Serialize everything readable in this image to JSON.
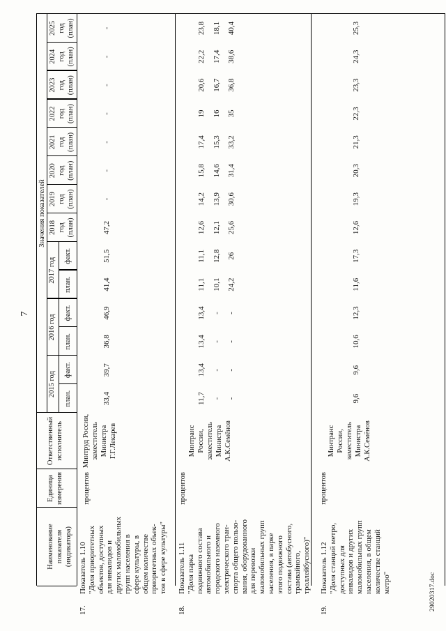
{
  "page": {
    "number": "7",
    "footer_filename": "29020317.doc"
  },
  "table": {
    "headers": {
      "name_lines": [
        "Наименование показателя",
        "(индикатора)"
      ],
      "unit_lines": [
        "Единица",
        "измерения"
      ],
      "responsible_lines": [
        "Ответственный",
        "исполнитель"
      ],
      "values_group": "Значения показателей",
      "year_columns": [
        {
          "type": "group",
          "label": "2015 год",
          "subs": [
            "план.",
            "факт."
          ]
        },
        {
          "type": "group",
          "label": "2016 год",
          "subs": [
            "план.",
            "факт."
          ]
        },
        {
          "type": "group",
          "label": "2017 год",
          "subs": [
            "план.",
            "факт."
          ]
        },
        {
          "type": "single",
          "lines": [
            "2018",
            "год",
            "(план)"
          ]
        },
        {
          "type": "single",
          "lines": [
            "2019",
            "год",
            "(план)"
          ]
        },
        {
          "type": "single",
          "lines": [
            "2020",
            "год",
            "(план)"
          ]
        },
        {
          "type": "single",
          "lines": [
            "2021",
            "год",
            "(план)"
          ]
        },
        {
          "type": "single",
          "lines": [
            "2022",
            "год",
            "(план)"
          ]
        },
        {
          "type": "single",
          "lines": [
            "2023",
            "год",
            "(план)"
          ]
        },
        {
          "type": "single",
          "lines": [
            "2024",
            "год",
            "(план)"
          ]
        },
        {
          "type": "single",
          "lines": [
            "2025",
            "год",
            "(план)"
          ]
        }
      ]
    },
    "rows": [
      {
        "num": "17.",
        "indicator_lines": [
          "Показатель 1.10",
          "\"Доля приоритетных",
          "объектов, доступных",
          "для инвалидов и",
          "других маломобильных",
          "групп населения в",
          "сфере культуры, в",
          "общем количестве",
          "приоритетных объек-",
          "тов в сфере культуры\""
        ],
        "unit": "процентов",
        "responsible_lines": [
          "Минтруд России,",
          "заместитель",
          "Министра",
          "Г.Г.Лекарев"
        ],
        "value_lines": [
          [
            "33,4",
            "39,7",
            "36,8",
            "46,9",
            "41,4",
            "51,5",
            "47,2",
            "-",
            "-",
            "-",
            "-",
            "-",
            "-",
            "-"
          ]
        ]
      },
      {
        "num": "18.",
        "indicator_lines": [
          "Показатель 1.11",
          "\"Доля парка",
          "подвижного состава",
          "автомобильного и",
          "городского наземного",
          "электрического тран-",
          "спорта общего пользо-",
          "вания, оборудованного",
          "для перевозки",
          "маломобильных групп",
          "населения, в парке",
          "этого подвижного",
          "состава (автобусного,",
          "трамвайного,",
          "троллейбусного)\""
        ],
        "unit": "процентов",
        "responsible_lines": [
          "Минтранс",
          "России,",
          "заместитель",
          "Министра",
          "А.К.Семёнов"
        ],
        "value_lines": [
          [
            "11,7",
            "13,4",
            "13,4",
            "13,4",
            "11,1",
            "11,1",
            "12,6",
            "14,2",
            "15,8",
            "17,4",
            "19",
            "20,6",
            "22,2",
            "23,8"
          ],
          [
            "-",
            "-",
            "-",
            "-",
            "10,1",
            "12,8",
            "12,1",
            "13,9",
            "14,6",
            "15,3",
            "16",
            "16,7",
            "17,4",
            "18,1"
          ],
          [
            "-",
            "-",
            "-",
            "-",
            "24,2",
            "26",
            "25,6",
            "30,6",
            "31,4",
            "33,2",
            "35",
            "36,8",
            "38,6",
            "40,4"
          ]
        ]
      },
      {
        "num": "19.",
        "indicator_lines": [
          "Показатель 1.12",
          "\"Доля станций метро,",
          "доступных для",
          "инвалидов и других",
          "маломобильных групп",
          "населения, в общем",
          "количестве станций",
          "метро\""
        ],
        "unit": "процентов",
        "responsible_lines": [
          "Минтранс",
          "России,",
          "заместитель",
          "Министра",
          "А.К.Семёнов"
        ],
        "value_lines": [
          [
            "9,6",
            "9,6",
            "10,6",
            "12,3",
            "11,6",
            "17,3",
            "12,6",
            "19,3",
            "20,3",
            "21,3",
            "22,3",
            "23,3",
            "24,3",
            "25,3"
          ]
        ]
      }
    ]
  }
}
